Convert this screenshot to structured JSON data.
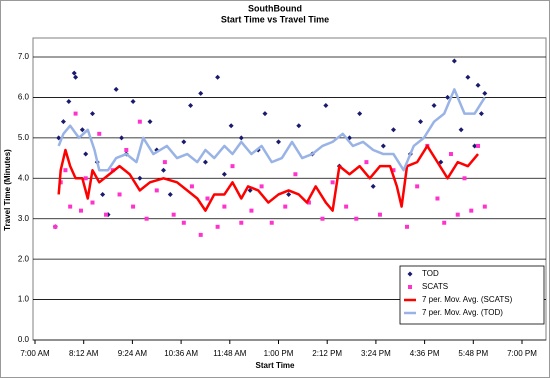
{
  "chart_data": {
    "type": "scatter",
    "title": "SouthBound",
    "subtitle": "Start Time  vs Travel Time",
    "x_label": "Start Time",
    "y_label": "Travel Time (Minutes)",
    "xlim": [
      420,
      1140
    ],
    "ylim": [
      0,
      7
    ],
    "xticks": [
      {
        "value": 420,
        "label": "7:00 AM"
      },
      {
        "value": 492,
        "label": "8:12 AM"
      },
      {
        "value": 564,
        "label": "9:24 AM"
      },
      {
        "value": 636,
        "label": "10:36 AM"
      },
      {
        "value": 708,
        "label": "11:48 AM"
      },
      {
        "value": 780,
        "label": "1:00 PM"
      },
      {
        "value": 852,
        "label": "2:12 PM"
      },
      {
        "value": 924,
        "label": "3:24 PM"
      },
      {
        "value": 996,
        "label": "4:36 PM"
      },
      {
        "value": 1068,
        "label": "5:48 PM"
      },
      {
        "value": 1140,
        "label": "7:00 PM"
      }
    ],
    "yticks": [
      {
        "value": 0,
        "label": "0.0"
      },
      {
        "value": 1,
        "label": "1.0"
      },
      {
        "value": 2,
        "label": "2.0"
      },
      {
        "value": 3,
        "label": "3.0"
      },
      {
        "value": 4,
        "label": "4.0"
      },
      {
        "value": 5,
        "label": "5.0"
      },
      {
        "value": 6,
        "label": "6.0"
      },
      {
        "value": 7,
        "label": "7.0"
      }
    ],
    "grid": true,
    "legend": "bottom-right",
    "series": [
      {
        "name": "TOD",
        "color": "#1a1a6e",
        "style": "marker",
        "marker": "diamond",
        "x": [
          450,
          455,
          462,
          470,
          478,
          480,
          490,
          495,
          505,
          512,
          520,
          528,
          540,
          548,
          555,
          565,
          575,
          590,
          600,
          610,
          620,
          640,
          650,
          665,
          672,
          690,
          700,
          710,
          725,
          738,
          750,
          760,
          780,
          795,
          810,
          830,
          850,
          870,
          885,
          900,
          920,
          935,
          950,
          975,
          990,
          1010,
          1020,
          1030,
          1040,
          1050,
          1060,
          1070,
          1075,
          1080,
          1085
        ],
        "values": [
          2.8,
          5.0,
          5.4,
          5.9,
          6.6,
          6.5,
          5.2,
          4.6,
          5.6,
          4.4,
          3.6,
          3.1,
          6.2,
          5.0,
          4.6,
          5.9,
          4.0,
          5.4,
          4.7,
          4.2,
          3.6,
          4.9,
          5.8,
          6.1,
          4.4,
          6.5,
          4.1,
          5.3,
          5.0,
          3.7,
          4.7,
          5.6,
          4.9,
          3.6,
          5.3,
          4.6,
          5.8,
          4.3,
          5.0,
          5.6,
          3.8,
          4.8,
          5.2,
          4.6,
          5.4,
          5.8,
          4.4,
          6.0,
          6.9,
          5.2,
          6.5,
          4.8,
          6.3,
          5.6,
          6.1
        ]
      },
      {
        "name": "SCATS",
        "color": "#ff33cc",
        "style": "marker",
        "marker": "square",
        "x": [
          450,
          458,
          465,
          472,
          480,
          488,
          495,
          505,
          515,
          525,
          535,
          545,
          555,
          565,
          575,
          585,
          600,
          612,
          625,
          640,
          652,
          665,
          675,
          690,
          700,
          712,
          725,
          740,
          755,
          770,
          790,
          805,
          825,
          845,
          860,
          880,
          895,
          910,
          930,
          950,
          970,
          985,
          1000,
          1015,
          1025,
          1035,
          1045,
          1055,
          1065,
          1075,
          1085
        ],
        "values": [
          2.8,
          3.9,
          4.2,
          3.3,
          5.6,
          3.2,
          4.0,
          3.4,
          5.1,
          3.1,
          4.2,
          3.6,
          4.7,
          3.3,
          5.4,
          3.0,
          3.7,
          4.4,
          3.1,
          2.9,
          3.8,
          2.6,
          3.5,
          2.8,
          3.3,
          4.3,
          2.9,
          3.2,
          3.8,
          2.9,
          3.3,
          4.1,
          3.4,
          3.0,
          3.9,
          3.3,
          3.0,
          4.4,
          3.1,
          4.2,
          2.8,
          3.8,
          4.8,
          3.5,
          2.9,
          4.6,
          3.1,
          4.0,
          3.2,
          4.8,
          3.3
        ]
      },
      {
        "name": "7 per. Mov. Avg. (SCATS)",
        "color": "#ff0000",
        "style": "line",
        "x": [
          455,
          458,
          465,
          472,
          480,
          490,
          498,
          505,
          515,
          530,
          545,
          560,
          575,
          590,
          610,
          630,
          645,
          660,
          672,
          685,
          700,
          712,
          725,
          735,
          750,
          765,
          780,
          795,
          810,
          822,
          835,
          850,
          860,
          870,
          885,
          900,
          915,
          930,
          945,
          955,
          962,
          970,
          985,
          1000,
          1015,
          1030,
          1045,
          1060,
          1075
        ],
        "values": [
          3.6,
          4.2,
          4.7,
          4.3,
          4.0,
          4.0,
          3.5,
          4.2,
          3.9,
          4.1,
          4.3,
          4.1,
          3.7,
          3.9,
          4.0,
          3.9,
          3.7,
          3.5,
          3.2,
          3.6,
          3.6,
          3.9,
          3.5,
          3.8,
          3.7,
          3.4,
          3.6,
          3.7,
          3.6,
          3.4,
          3.8,
          3.4,
          3.2,
          4.3,
          4.1,
          4.3,
          4.0,
          4.3,
          4.3,
          3.8,
          3.3,
          4.3,
          4.4,
          4.8,
          4.4,
          4.0,
          4.4,
          4.3,
          4.6
        ]
      },
      {
        "name": "7 per. Mov. Avg. (TOD)",
        "color": "#99b3e6",
        "style": "line",
        "x": [
          455,
          462,
          472,
          485,
          498,
          508,
          515,
          528,
          540,
          555,
          570,
          580,
          595,
          615,
          630,
          645,
          660,
          672,
          685,
          700,
          712,
          725,
          740,
          755,
          770,
          785,
          800,
          815,
          830,
          845,
          860,
          875,
          890,
          905,
          920,
          935,
          950,
          965,
          980,
          995,
          1010,
          1025,
          1040,
          1055,
          1070,
          1085
        ],
        "values": [
          4.8,
          5.1,
          5.3,
          5.0,
          5.2,
          4.7,
          4.2,
          4.2,
          4.5,
          4.6,
          4.4,
          5.0,
          4.6,
          4.8,
          4.5,
          4.6,
          4.4,
          4.7,
          4.5,
          4.8,
          4.6,
          4.9,
          4.6,
          4.8,
          4.4,
          4.5,
          4.9,
          4.5,
          4.6,
          4.8,
          4.9,
          5.1,
          4.8,
          4.9,
          4.7,
          4.6,
          4.6,
          4.2,
          4.8,
          5.0,
          5.4,
          5.6,
          6.2,
          5.6,
          5.6,
          6.0
        ]
      }
    ]
  }
}
